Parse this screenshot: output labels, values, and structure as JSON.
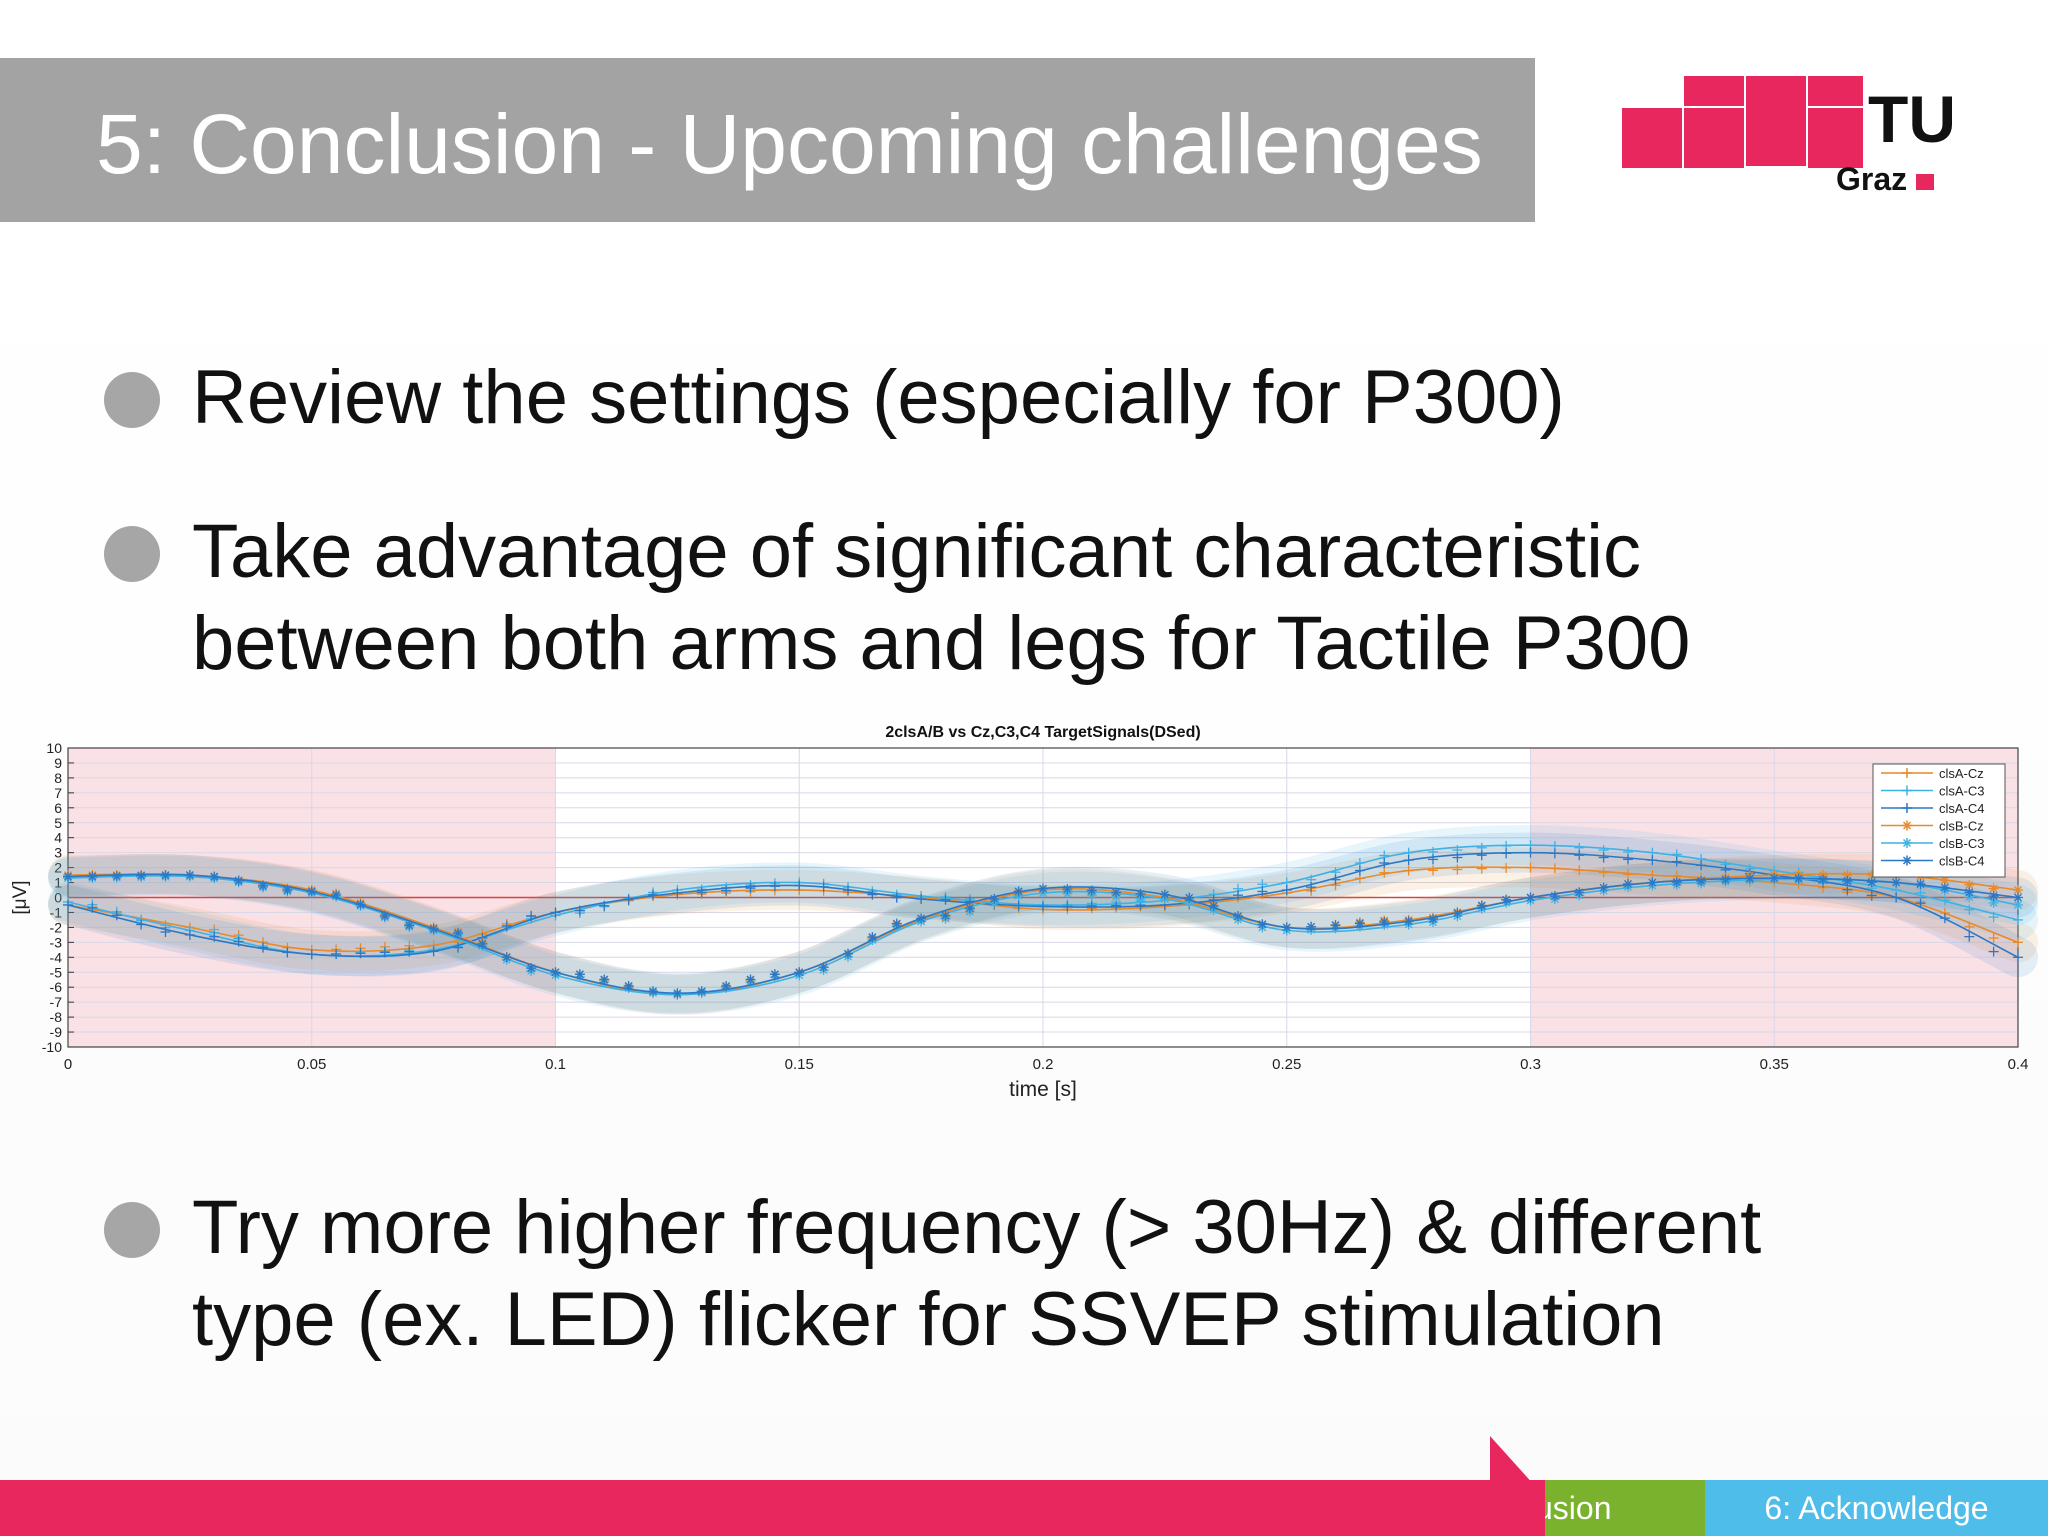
{
  "slide": {
    "title": "5: Conclusion - Upcoming challenges",
    "logo": {
      "text_main": "TU",
      "text_sub": "Graz",
      "color": "#e8275e"
    }
  },
  "bullets": [
    {
      "lines": [
        "Review the settings (especially for P300)"
      ]
    },
    {
      "lines": [
        "Take advantage of significant characteristic",
        "between both arms and legs for Tactile P300"
      ]
    },
    {
      "lines": [
        "Try more higher frequency (> 30Hz) & different",
        "type (ex. LED) flicker for SSVEP stimulation"
      ]
    }
  ],
  "footer": {
    "items": [
      {
        "label": "5: Conclusion",
        "visible_text": "usion",
        "color": "#7ab22e"
      },
      {
        "label": "6: Acknowledge",
        "color": "#4fbde9"
      }
    ],
    "bar_color": "#e8275e"
  },
  "chart_data": {
    "type": "line",
    "title": "2clsA/B vs Cz,C3,C4 TargetSignals(DSed)",
    "xlabel": "time [s]",
    "ylabel": "[μV]",
    "xlim": [
      0,
      0.4
    ],
    "ylim": [
      -10,
      10
    ],
    "xticks": [
      "0",
      "0.05",
      "0.1",
      "0.15",
      "0.2",
      "0.25",
      "0.3",
      "0.35",
      "0.4"
    ],
    "yticks": [
      "10",
      "9",
      "8",
      "7",
      "6",
      "5",
      "4",
      "3",
      "2",
      "1",
      "0",
      "-1",
      "-2",
      "-3",
      "-4",
      "-5",
      "-6",
      "-7",
      "-8",
      "-9",
      "-10"
    ],
    "grid": true,
    "legend_position": "top-right",
    "shaded_regions": [
      {
        "x": [
          0,
          0.1
        ],
        "color": "#f8d7dd"
      },
      {
        "x": [
          0.3,
          0.4
        ],
        "color": "#f8d7dd"
      }
    ],
    "x": [
      0,
      0.025,
      0.05,
      0.075,
      0.1,
      0.125,
      0.15,
      0.175,
      0.2,
      0.225,
      0.25,
      0.275,
      0.3,
      0.325,
      0.35,
      0.375,
      0.4
    ],
    "series": [
      {
        "name": "clsA-Cz",
        "color": "#e8892a",
        "marker": "+",
        "values": [
          -0.5,
          -2.0,
          -3.5,
          -3.2,
          -1.0,
          0.2,
          0.5,
          0.0,
          -0.8,
          -0.6,
          0.3,
          1.8,
          2.0,
          1.5,
          1.0,
          0.0,
          -3.0
        ]
      },
      {
        "name": "clsA-C3",
        "color": "#3fb2e5",
        "marker": "+",
        "values": [
          -0.3,
          -2.2,
          -3.8,
          -3.5,
          -1.2,
          0.5,
          1.0,
          0.1,
          -0.5,
          -0.2,
          1.0,
          3.0,
          3.5,
          3.0,
          1.8,
          0.5,
          -1.5
        ]
      },
      {
        "name": "clsA-C4",
        "color": "#2b78c7",
        "marker": "+",
        "values": [
          -0.5,
          -2.5,
          -3.8,
          -3.6,
          -1.0,
          0.3,
          0.8,
          -0.1,
          -0.6,
          -0.5,
          0.5,
          2.5,
          3.0,
          2.5,
          1.5,
          0.0,
          -4.0
        ]
      },
      {
        "name": "clsB-Cz",
        "color": "#e8892a",
        "marker": "*",
        "values": [
          1.5,
          1.5,
          0.5,
          -2.0,
          -5.0,
          -6.5,
          -5.0,
          -1.5,
          0.5,
          0.0,
          -2.0,
          -1.5,
          0.0,
          1.0,
          1.5,
          1.5,
          0.5
        ]
      },
      {
        "name": "clsB-C3",
        "color": "#3fb2e5",
        "marker": "*",
        "values": [
          1.3,
          1.4,
          0.3,
          -2.2,
          -5.2,
          -6.5,
          -5.2,
          -1.6,
          0.3,
          -0.1,
          -2.2,
          -1.8,
          -0.2,
          0.8,
          1.2,
          1.0,
          -0.5
        ]
      },
      {
        "name": "clsB-C4",
        "color": "#2b78c7",
        "marker": "*",
        "values": [
          1.4,
          1.5,
          0.4,
          -2.1,
          -5.0,
          -6.4,
          -5.0,
          -1.4,
          0.6,
          0.2,
          -2.0,
          -1.6,
          0.0,
          1.0,
          1.3,
          1.0,
          0.0
        ]
      }
    ]
  }
}
